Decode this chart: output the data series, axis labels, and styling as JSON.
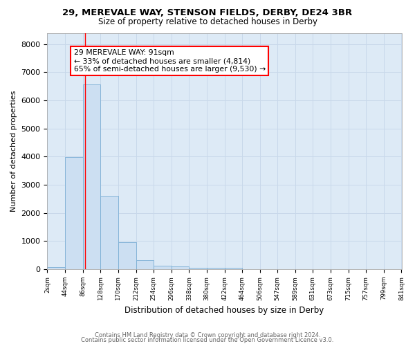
{
  "title1": "29, MEREVALE WAY, STENSON FIELDS, DERBY, DE24 3BR",
  "title2": "Size of property relative to detached houses in Derby",
  "xlabel": "Distribution of detached houses by size in Derby",
  "ylabel": "Number of detached properties",
  "footer1": "Contains HM Land Registry data © Crown copyright and database right 2024.",
  "footer2": "Contains public sector information licensed under the Open Government Licence v3.0.",
  "annotation_line1": "29 MEREVALE WAY: 91sqm",
  "annotation_line2": "← 33% of detached houses are smaller (4,814)",
  "annotation_line3": "65% of semi-detached houses are larger (9,530) →",
  "bar_edges": [
    2,
    44,
    86,
    128,
    170,
    212,
    254,
    296,
    338,
    380,
    422,
    464,
    506,
    547,
    589,
    631,
    673,
    715,
    757,
    799,
    841
  ],
  "bar_heights": [
    75,
    3980,
    6560,
    2620,
    960,
    310,
    120,
    90,
    60,
    50,
    55,
    0,
    0,
    0,
    0,
    0,
    0,
    0,
    0,
    0
  ],
  "bar_color": "#ccdff2",
  "bar_edge_color": "#7aaed4",
  "red_line_x": 91,
  "ylim": [
    0,
    8400
  ],
  "yticks": [
    0,
    1000,
    2000,
    3000,
    4000,
    5000,
    6000,
    7000,
    8000
  ],
  "grid_color": "#c8d8ea",
  "bg_color": "#ddeaf6"
}
